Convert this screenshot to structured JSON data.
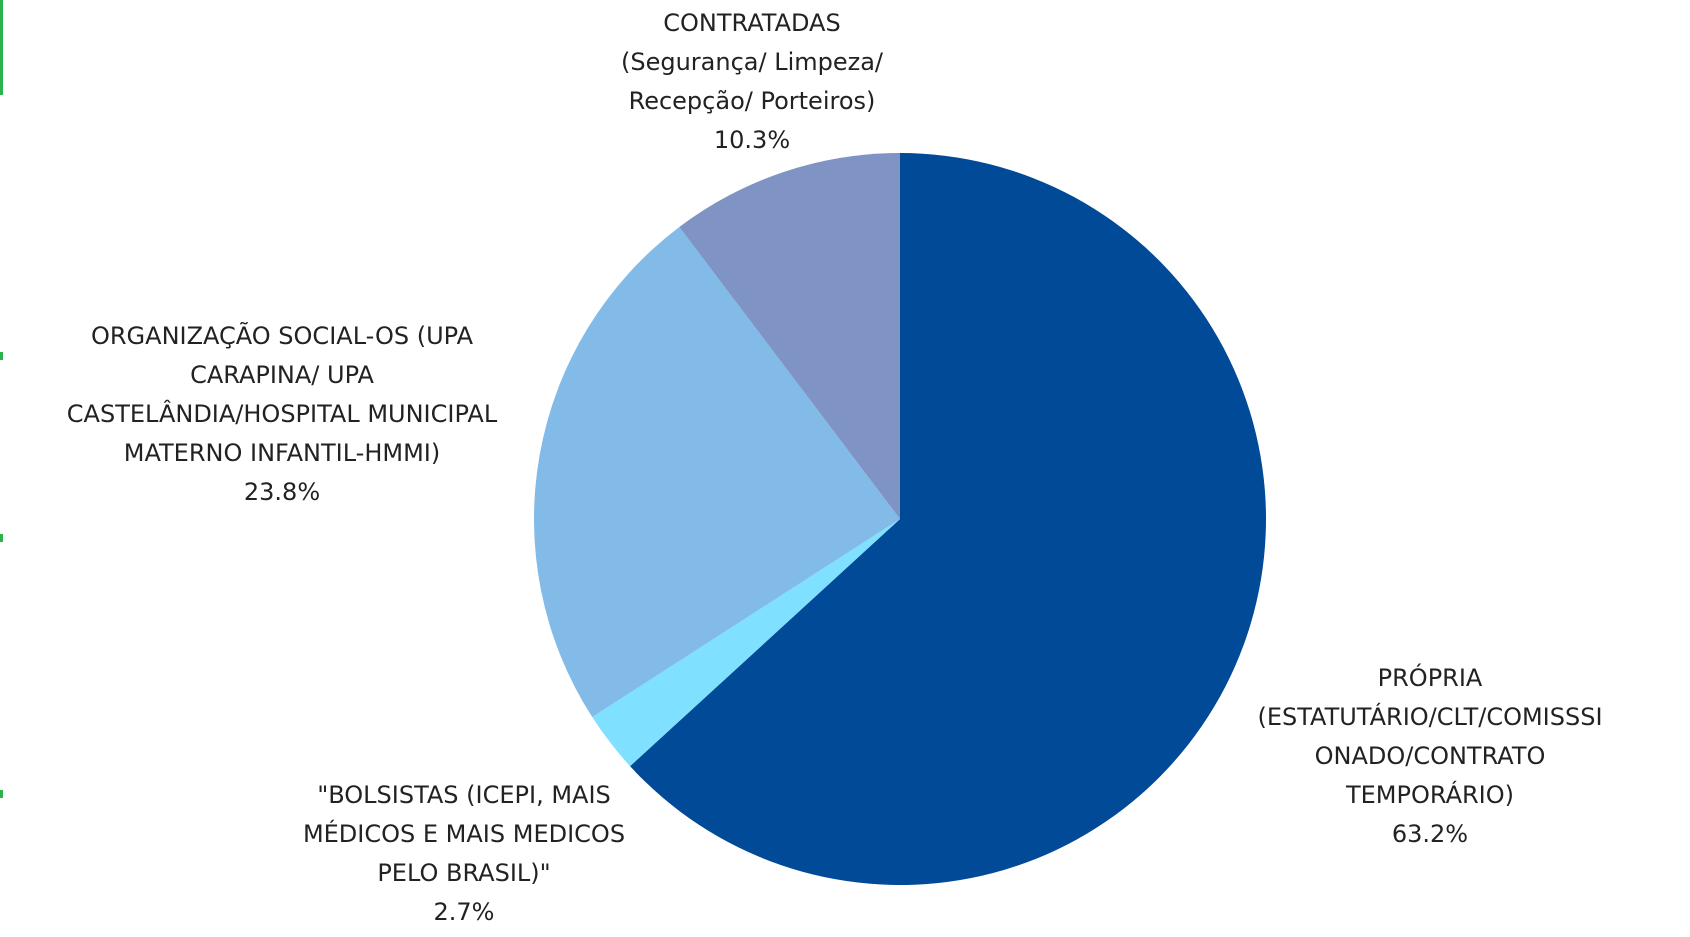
{
  "chart_data": {
    "type": "pie",
    "categories": [
      "PRÓPRIA\n(ESTATUTÁRIO/CLT/COMISSSI\nONADO/CONTRATO\nTEMPORÁRIO)",
      "\"BOLSISTAS (ICEPI, MAIS\nMÉDICOS E MAIS MEDICOS\nPELO BRASIL)\"",
      "ORGANIZAÇÃO SOCIAL-OS (UPA\nCARAPINA/ UPA\nCASTELÂNDIA/HOSPITAL MUNICIPAL\nMATERNO INFANTIL-HMMI)",
      "CONTRATADAS\n(Segurança/ Limpeza/\nRecepção/ Porteiros)"
    ],
    "values": [
      63.2,
      2.7,
      23.8,
      10.3
    ],
    "value_labels": [
      "63.2%",
      "2.7%",
      "23.8%",
      "10.3%"
    ],
    "colors": [
      "#004a98",
      "#7fe0ff",
      "#82bae8",
      "#7f93c4"
    ]
  }
}
